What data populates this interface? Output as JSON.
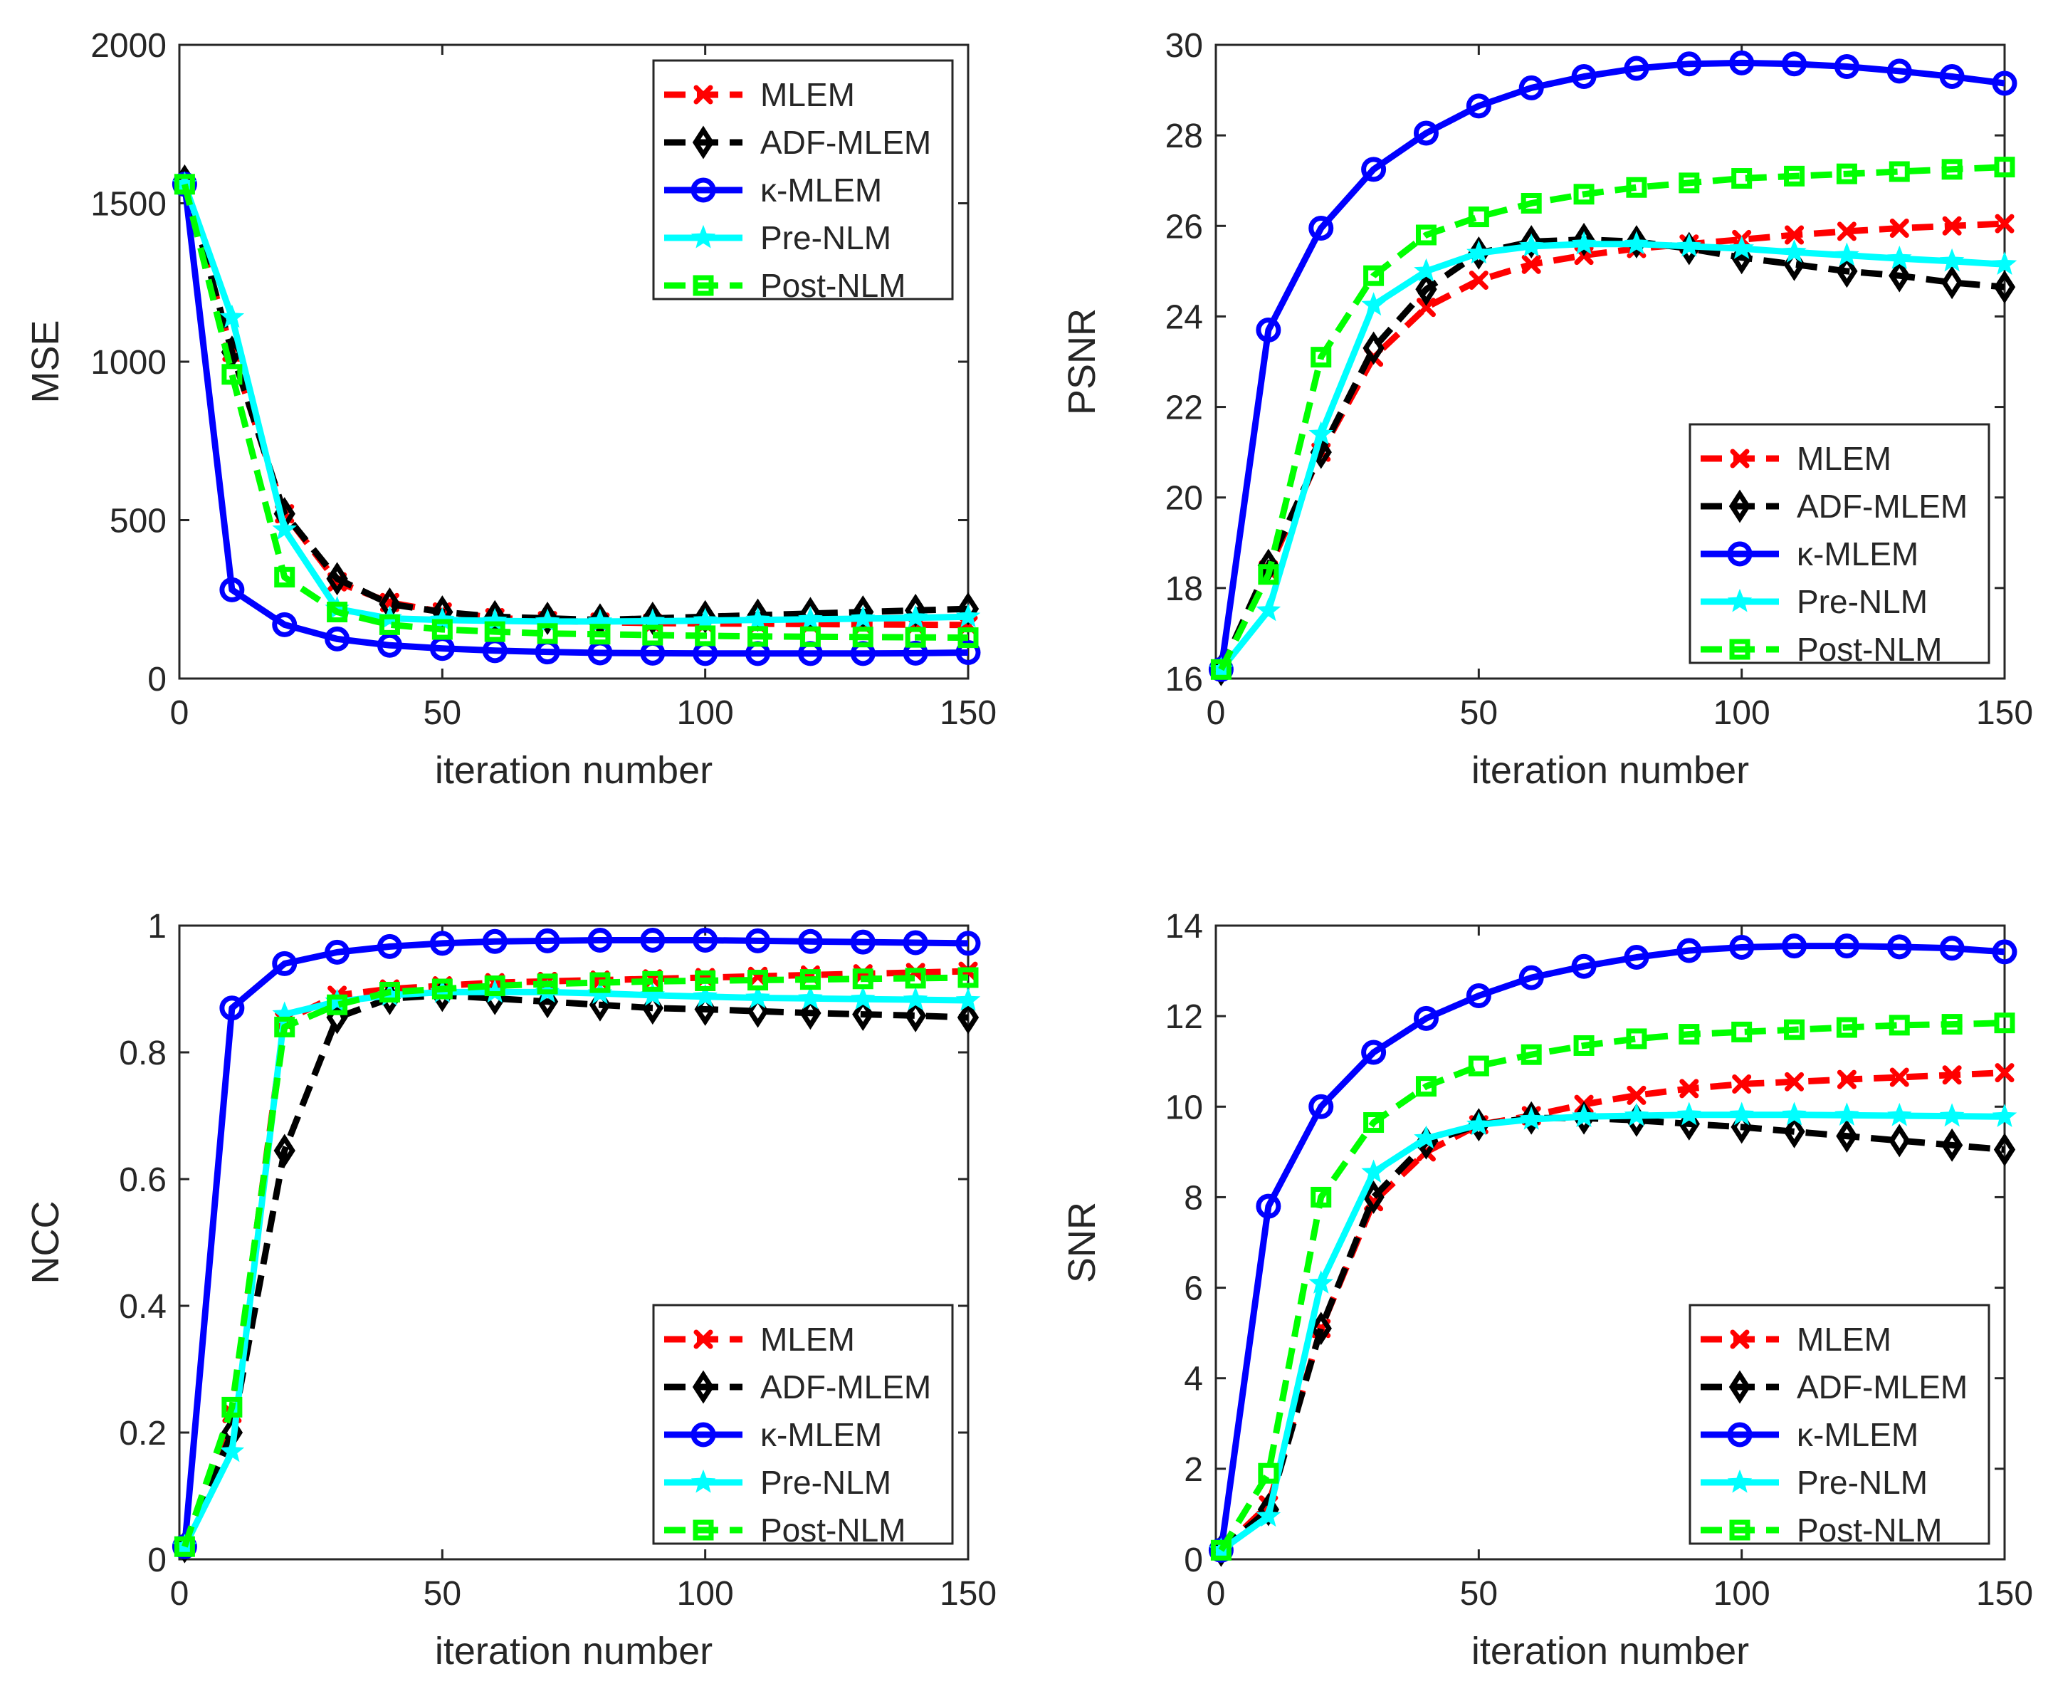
{
  "chart_data": [
    {
      "type": "line",
      "ylabel": "MSE",
      "xlabel": "iteration number",
      "xlim": [
        0,
        150
      ],
      "ylim": [
        0,
        2000
      ],
      "xticks": [
        0,
        50,
        100,
        150
      ],
      "yticks": [
        0,
        500,
        1000,
        1500,
        2000
      ],
      "legend_position": "top-right",
      "x": [
        1,
        10,
        20,
        30,
        40,
        50,
        60,
        70,
        80,
        90,
        100,
        110,
        120,
        130,
        140,
        150
      ],
      "series": [
        {
          "name": "MLEM",
          "color": "#ff0000",
          "dash": "dashed",
          "marker": "x",
          "values": [
            1560,
            1030,
            520,
            305,
            240,
            210,
            192,
            183,
            178,
            175,
            174,
            173,
            172,
            171,
            170,
            169
          ]
        },
        {
          "name": "ADF-MLEM",
          "color": "#000000",
          "dash": "dashed",
          "marker": "diamond",
          "values": [
            1570,
            1030,
            520,
            315,
            235,
            210,
            195,
            190,
            185,
            190,
            195,
            200,
            205,
            210,
            215,
            220
          ]
        },
        {
          "name": "κ-MLEM",
          "color": "#0000ff",
          "dash": "solid",
          "marker": "circle",
          "values": [
            1560,
            280,
            170,
            125,
            105,
            95,
            88,
            84,
            81,
            80,
            79,
            79,
            79,
            79,
            80,
            82
          ]
        },
        {
          "name": "Pre-NLM",
          "color": "#00ffff",
          "dash": "solid",
          "marker": "star",
          "values": [
            1560,
            1140,
            470,
            220,
            190,
            185,
            182,
            180,
            180,
            181,
            183,
            185,
            187,
            189,
            192,
            195
          ]
        },
        {
          "name": "Post-NLM",
          "color": "#00ff00",
          "dash": "dashed",
          "marker": "square",
          "values": [
            1560,
            960,
            320,
            210,
            170,
            155,
            148,
            142,
            140,
            137,
            135,
            133,
            132,
            131,
            130,
            129
          ]
        }
      ]
    },
    {
      "type": "line",
      "ylabel": "PSNR",
      "xlabel": "iteration number",
      "xlim": [
        0,
        150
      ],
      "ylim": [
        16,
        30
      ],
      "xticks": [
        0,
        50,
        100,
        150
      ],
      "yticks": [
        16,
        18,
        20,
        22,
        24,
        26,
        28,
        30
      ],
      "legend_position": "bottom-right",
      "x": [
        1,
        10,
        20,
        30,
        40,
        50,
        60,
        70,
        80,
        90,
        100,
        110,
        120,
        130,
        140,
        150
      ],
      "series": [
        {
          "name": "MLEM",
          "color": "#ff0000",
          "dash": "dashed",
          "marker": "x",
          "values": [
            16.2,
            18.4,
            21.0,
            23.1,
            24.2,
            24.8,
            25.15,
            25.35,
            25.5,
            25.6,
            25.7,
            25.8,
            25.88,
            25.95,
            26.0,
            26.05
          ]
        },
        {
          "name": "ADF-MLEM",
          "color": "#000000",
          "dash": "dashed",
          "marker": "diamond",
          "values": [
            16.2,
            18.5,
            21.0,
            23.3,
            24.6,
            25.4,
            25.65,
            25.7,
            25.65,
            25.5,
            25.3,
            25.15,
            25.0,
            24.9,
            24.75,
            24.65
          ]
        },
        {
          "name": "κ-MLEM",
          "color": "#0000ff",
          "dash": "solid",
          "marker": "circle",
          "values": [
            16.2,
            23.7,
            25.95,
            27.25,
            28.05,
            28.65,
            29.05,
            29.3,
            29.48,
            29.58,
            29.6,
            29.58,
            29.52,
            29.42,
            29.3,
            29.15
          ]
        },
        {
          "name": "Pre-NLM",
          "color": "#00ffff",
          "dash": "solid",
          "marker": "star",
          "values": [
            16.2,
            17.5,
            21.4,
            24.25,
            25.0,
            25.4,
            25.55,
            25.6,
            25.6,
            25.55,
            25.5,
            25.42,
            25.35,
            25.28,
            25.22,
            25.15
          ]
        },
        {
          "name": "Post-NLM",
          "color": "#00ff00",
          "dash": "dashed",
          "marker": "square",
          "values": [
            16.2,
            18.3,
            23.1,
            24.9,
            25.8,
            26.2,
            26.5,
            26.7,
            26.85,
            26.95,
            27.05,
            27.1,
            27.15,
            27.2,
            27.25,
            27.3
          ]
        }
      ]
    },
    {
      "type": "line",
      "ylabel": "NCC",
      "xlabel": "iteration number",
      "xlim": [
        0,
        150
      ],
      "ylim": [
        0,
        1
      ],
      "xticks": [
        0,
        50,
        100,
        150
      ],
      "yticks": [
        0,
        0.2,
        0.4,
        0.6,
        0.8,
        1
      ],
      "legend_position": "bottom-right",
      "x": [
        1,
        10,
        20,
        30,
        40,
        50,
        60,
        70,
        80,
        90,
        100,
        110,
        120,
        130,
        140,
        150
      ],
      "series": [
        {
          "name": "MLEM",
          "color": "#ff0000",
          "dash": "dashed",
          "marker": "x",
          "values": [
            0.02,
            0.23,
            0.85,
            0.89,
            0.9,
            0.905,
            0.91,
            0.912,
            0.914,
            0.916,
            0.918,
            0.92,
            0.922,
            0.924,
            0.926,
            0.928
          ]
        },
        {
          "name": "ADF-MLEM",
          "color": "#000000",
          "dash": "dashed",
          "marker": "diamond",
          "values": [
            0.02,
            0.2,
            0.645,
            0.855,
            0.885,
            0.89,
            0.885,
            0.88,
            0.875,
            0.87,
            0.868,
            0.865,
            0.862,
            0.86,
            0.858,
            0.855
          ]
        },
        {
          "name": "κ-MLEM",
          "color": "#0000ff",
          "dash": "solid",
          "marker": "circle",
          "values": [
            0.02,
            0.87,
            0.94,
            0.958,
            0.967,
            0.972,
            0.975,
            0.976,
            0.977,
            0.977,
            0.977,
            0.976,
            0.975,
            0.974,
            0.973,
            0.972
          ]
        },
        {
          "name": "Pre-NLM",
          "color": "#00ffff",
          "dash": "solid",
          "marker": "star",
          "values": [
            0.02,
            0.17,
            0.86,
            0.88,
            0.89,
            0.895,
            0.895,
            0.895,
            0.893,
            0.89,
            0.888,
            0.886,
            0.885,
            0.884,
            0.883,
            0.882
          ]
        },
        {
          "name": "Post-NLM",
          "color": "#00ff00",
          "dash": "dashed",
          "marker": "square",
          "values": [
            0.02,
            0.24,
            0.84,
            0.875,
            0.895,
            0.9,
            0.905,
            0.908,
            0.91,
            0.912,
            0.913,
            0.914,
            0.915,
            0.916,
            0.917,
            0.918
          ]
        }
      ]
    },
    {
      "type": "line",
      "ylabel": "SNR",
      "xlabel": "iteration number",
      "xlim": [
        0,
        150
      ],
      "ylim": [
        0,
        14
      ],
      "xticks": [
        0,
        50,
        100,
        150
      ],
      "yticks": [
        0,
        2,
        4,
        6,
        8,
        10,
        12,
        14
      ],
      "legend_position": "bottom-right",
      "x": [
        1,
        10,
        20,
        30,
        40,
        50,
        60,
        70,
        80,
        90,
        100,
        110,
        120,
        130,
        140,
        150
      ],
      "series": [
        {
          "name": "MLEM",
          "color": "#ff0000",
          "dash": "dashed",
          "marker": "x",
          "values": [
            0.2,
            1.2,
            5.1,
            7.9,
            9.0,
            9.6,
            9.8,
            10.05,
            10.25,
            10.4,
            10.5,
            10.55,
            10.6,
            10.65,
            10.7,
            10.75
          ]
        },
        {
          "name": "ADF-MLEM",
          "color": "#000000",
          "dash": "dashed",
          "marker": "diamond",
          "values": [
            0.2,
            1.1,
            5.1,
            8.0,
            9.2,
            9.6,
            9.75,
            9.75,
            9.7,
            9.62,
            9.55,
            9.45,
            9.35,
            9.25,
            9.15,
            9.05
          ]
        },
        {
          "name": "κ-MLEM",
          "color": "#0000ff",
          "dash": "solid",
          "marker": "circle",
          "values": [
            0.2,
            7.8,
            10.0,
            11.2,
            11.95,
            12.45,
            12.85,
            13.1,
            13.3,
            13.45,
            13.52,
            13.55,
            13.55,
            13.53,
            13.5,
            13.42
          ]
        },
        {
          "name": "Pre-NLM",
          "color": "#00ffff",
          "dash": "solid",
          "marker": "star",
          "values": [
            0.2,
            0.95,
            6.1,
            8.55,
            9.3,
            9.6,
            9.72,
            9.78,
            9.8,
            9.82,
            9.82,
            9.82,
            9.81,
            9.8,
            9.79,
            9.78
          ]
        },
        {
          "name": "Post-NLM",
          "color": "#00ff00",
          "dash": "dashed",
          "marker": "square",
          "values": [
            0.2,
            1.9,
            8.0,
            9.65,
            10.45,
            10.9,
            11.15,
            11.35,
            11.5,
            11.6,
            11.65,
            11.7,
            11.75,
            11.8,
            11.82,
            11.85
          ]
        }
      ]
    }
  ]
}
